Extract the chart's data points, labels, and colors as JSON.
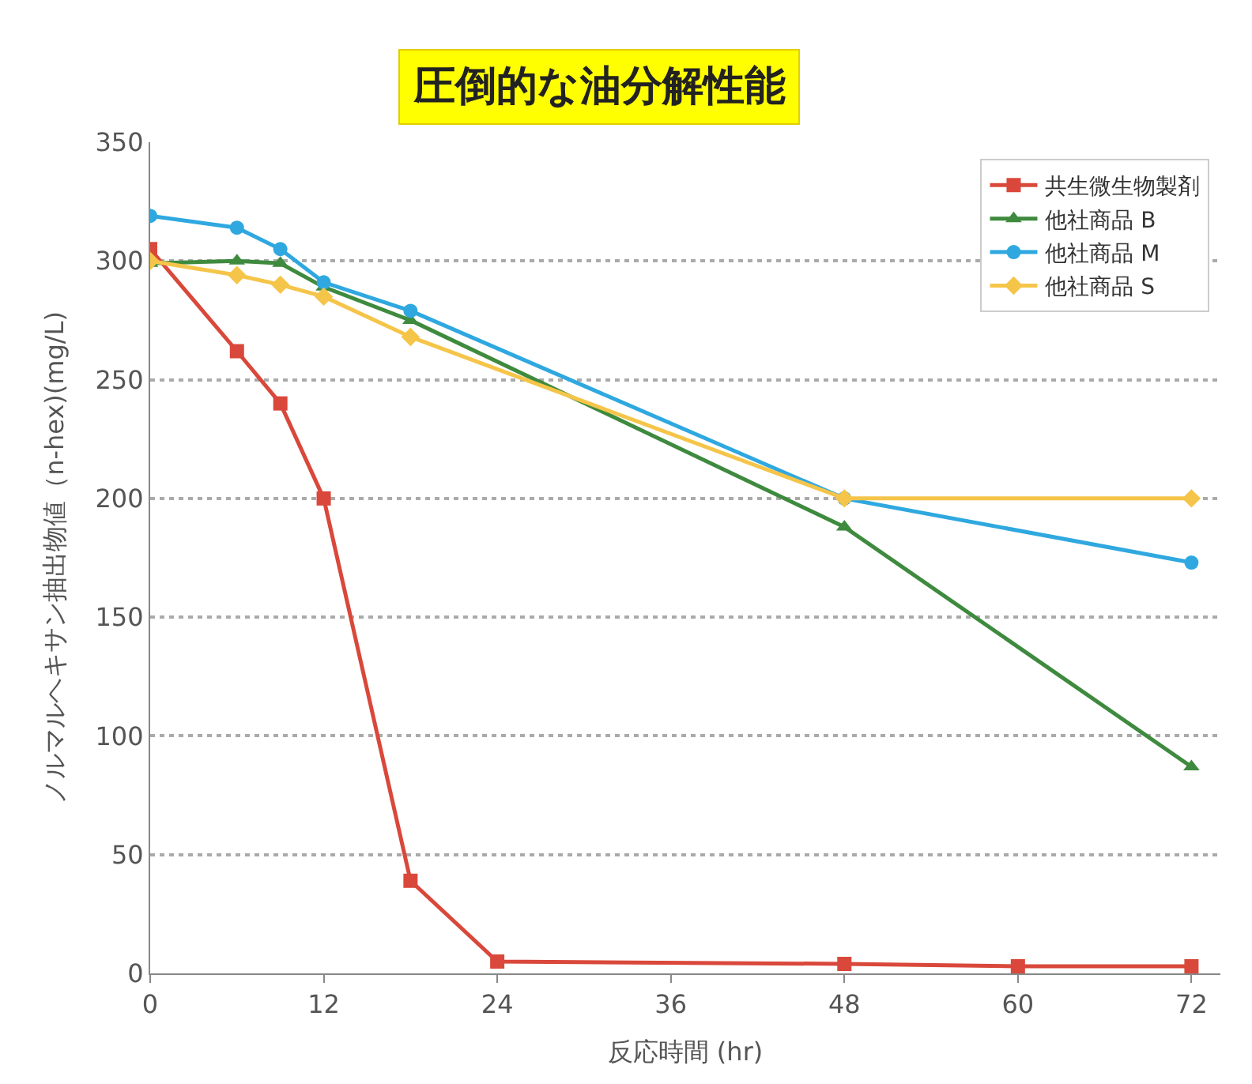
{
  "chart_data": {
    "type": "line",
    "xlabel": "反応時間 (hr)",
    "ylabel": "ノルマルヘキサン抽出物値（n-hex)(mg/L)",
    "annotations": [
      "圧倒的な油分解性能"
    ],
    "series": [
      {
        "name": "共生微生物製剤",
        "color": "#d9483b",
        "marker": "square",
        "x": [
          0,
          6,
          9,
          12,
          18,
          24,
          48,
          60,
          72
        ],
        "values": [
          305,
          262,
          240,
          200,
          39,
          5,
          4,
          3,
          3
        ]
      },
      {
        "name": "他社商品 B",
        "color": "#3e8a3e",
        "marker": "triangle",
        "x": [
          0,
          6,
          9,
          12,
          18,
          48,
          72
        ],
        "values": [
          299,
          300,
          299,
          289,
          275,
          188,
          87
        ]
      },
      {
        "name": "他社商品 M",
        "color": "#2fa8e0",
        "marker": "circle",
        "x": [
          0,
          6,
          9,
          12,
          18,
          48,
          72
        ],
        "values": [
          319,
          314,
          305,
          291,
          279,
          200,
          173
        ]
      },
      {
        "name": "他社商品 S",
        "color": "#f5c54a",
        "marker": "diamond",
        "x": [
          0,
          6,
          9,
          12,
          18,
          48,
          72
        ],
        "values": [
          300,
          294,
          290,
          285,
          268,
          200,
          200
        ]
      }
    ],
    "xlim": [
      0,
      74
    ],
    "xticks": [
      0,
      12,
      24,
      36,
      48,
      60,
      72
    ],
    "ylim": [
      0,
      350
    ],
    "yticks": [
      0,
      50,
      100,
      150,
      200,
      250,
      300,
      350
    ],
    "grid": "y",
    "legend": "top right",
    "line_style": "solid"
  }
}
